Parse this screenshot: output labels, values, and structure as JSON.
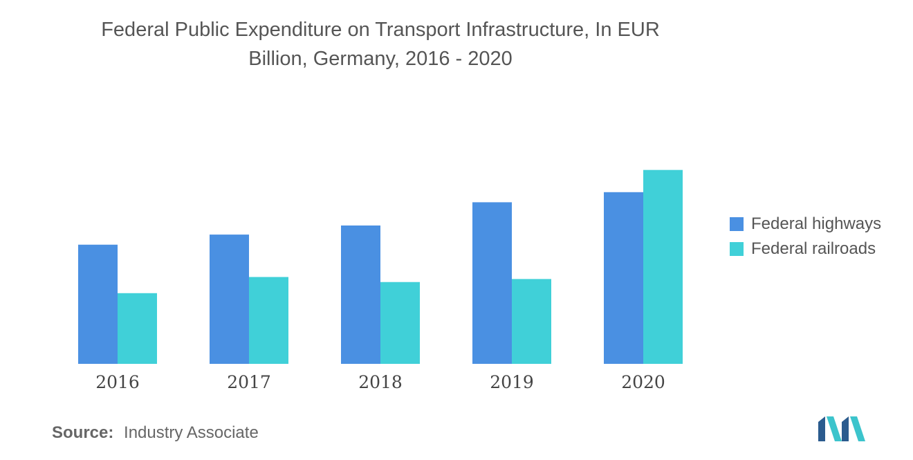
{
  "title_line1": "Federal Public Expenditure on Transport Infrastructure, In EUR",
  "title_line2": "Billion, Germany, 2016 - 2020",
  "source": {
    "label": "Source:",
    "text": "Industry Associate"
  },
  "colors": {
    "highways": "#4a90e2",
    "railroads": "#40d0d8",
    "text": "#555555",
    "logo_dark": "#2b5b8e",
    "logo_light": "#3cc4cc"
  },
  "chart_data": {
    "type": "bar",
    "title": "Federal Public Expenditure on Transport Infrastructure, In EUR Billion, Germany, 2016 - 2020",
    "categories": [
      "2016",
      "2017",
      "2018",
      "2019",
      "2020"
    ],
    "series": [
      {
        "name": "Federal highways",
        "values": [
          5.9,
          6.4,
          6.85,
          8.0,
          8.5
        ]
      },
      {
        "name": "Federal railroads",
        "values": [
          3.5,
          4.3,
          4.05,
          4.2,
          9.6
        ]
      }
    ],
    "ylim": [
      0,
      10
    ],
    "grid": false,
    "legend_position": "right"
  },
  "logo_icon": "mordor-logo-icon"
}
